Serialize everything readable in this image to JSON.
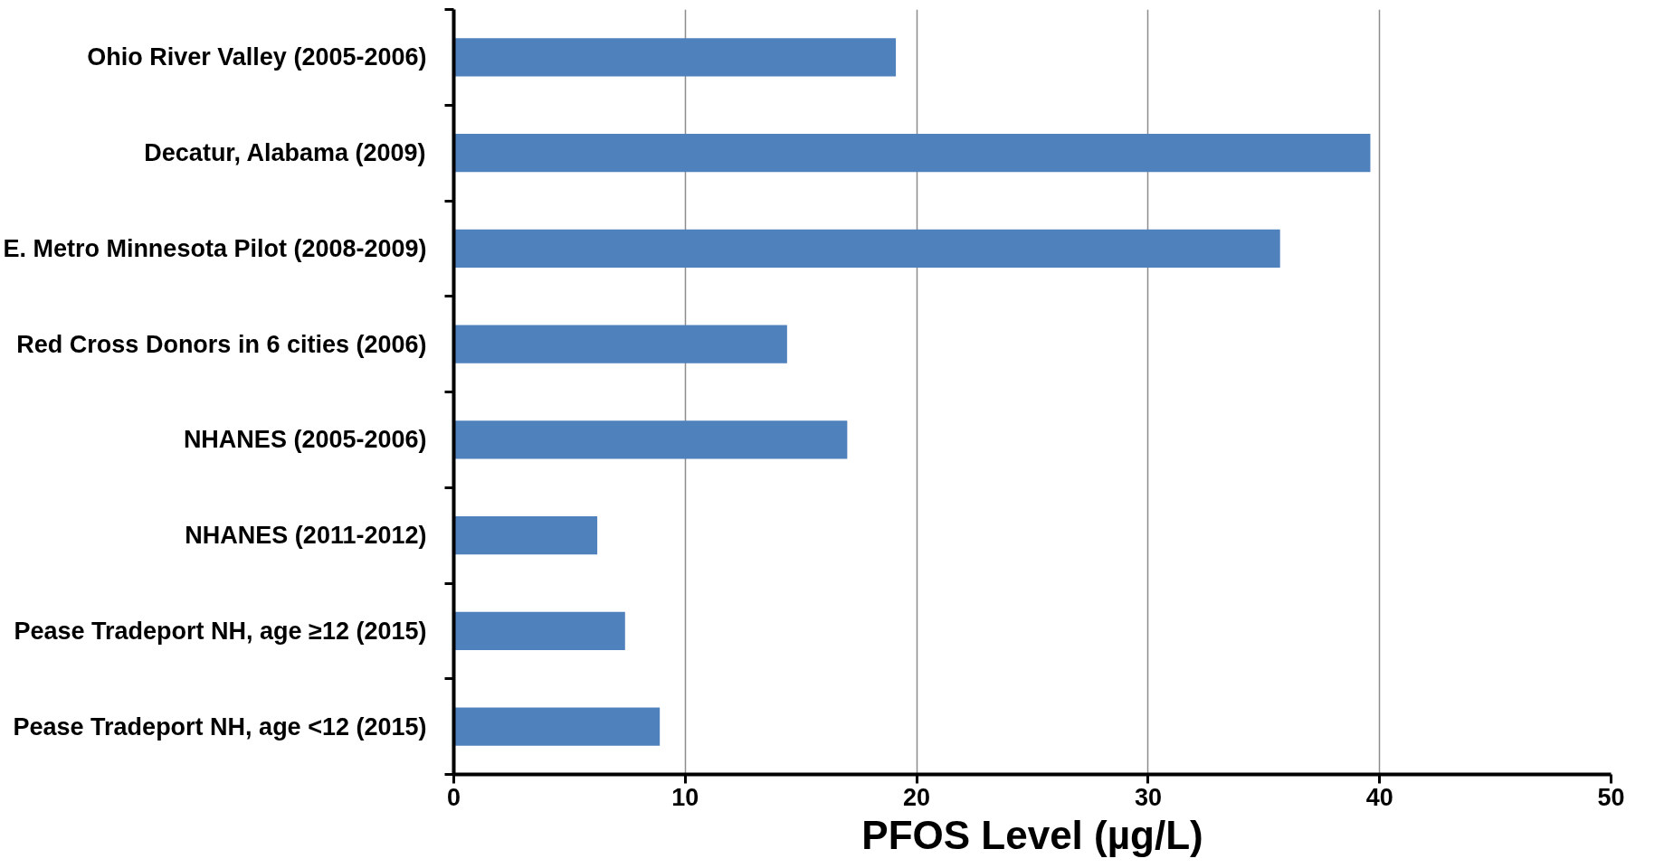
{
  "chart_data": {
    "type": "bar",
    "orientation": "horizontal",
    "xlabel": "PFOS Level (µg/L)",
    "categories": [
      "Ohio River Valley (2005-2006)",
      "Decatur, Alabama (2009)",
      "E. Metro Minnesota Pilot (2008-2009)",
      "Red Cross Donors in 6 cities (2006)",
      "NHANES (2005-2006)",
      "NHANES (2011-2012)",
      "Pease Tradeport NH, age ≥12 (2015)",
      "Pease Tradeport NH, age <12 (2015)"
    ],
    "values": [
      19.1,
      39.6,
      35.7,
      14.4,
      17.0,
      6.2,
      7.4,
      8.9
    ],
    "color": "#4f81bd",
    "xlim": [
      0,
      50
    ],
    "xticks": [
      0,
      10,
      20,
      30,
      40,
      50
    ],
    "grid": "x"
  }
}
